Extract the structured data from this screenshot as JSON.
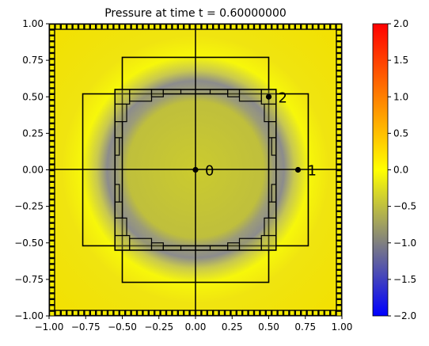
{
  "chart_data": {
    "type": "heatmap",
    "title": "Pressure at time t =     0.60000000",
    "xlabel": "",
    "ylabel": "",
    "xlim": [
      -1,
      1
    ],
    "ylim": [
      -1,
      1
    ],
    "xticks": [
      "−1.00",
      "−0.75",
      "−0.50",
      "−0.25",
      "0.00",
      "0.25",
      "0.50",
      "0.75",
      "1.00"
    ],
    "yticks": [
      "1.00",
      "0.75",
      "0.50",
      "0.25",
      "0.00",
      "−0.25",
      "−0.50",
      "−0.75",
      "−1.00"
    ],
    "xtick_values": [
      -1,
      -0.75,
      -0.5,
      -0.25,
      0,
      0.25,
      0.5,
      0.75,
      1
    ],
    "ytick_values": [
      1,
      0.75,
      0.5,
      0.25,
      0,
      -0.25,
      -0.5,
      -0.75,
      -1
    ],
    "colorbar": {
      "range": [
        -2,
        2
      ],
      "ticks": [
        "2.0",
        "1.5",
        "1.0",
        "0.5",
        "0.0",
        "−0.5",
        "−1.0",
        "−1.5",
        "−2.0"
      ],
      "tick_values": [
        2,
        1.5,
        1,
        0.5,
        0,
        -0.5,
        -1,
        -1.5,
        -2
      ],
      "colors": [
        "#0000ff",
        "#808080",
        "#ffff00",
        "#ff0000"
      ]
    },
    "field": {
      "inner_circle_radius": 0.52,
      "inner_value": -0.35,
      "ring_min_radius": 0.62,
      "ring_min_value": -1.0,
      "outer_value": -0.2
    },
    "grid_boxes": [
      {
        "x": [
          -0.5,
          0.5
        ],
        "y": [
          -0.77,
          0.77
        ]
      },
      {
        "x": [
          -0.77,
          0.77
        ],
        "y": [
          -0.52,
          0.52
        ]
      },
      {
        "x": [
          -0.55,
          0.55
        ],
        "y": [
          -0.55,
          0.55
        ]
      }
    ],
    "points": [
      {
        "label": "0",
        "x": 0.0,
        "y": 0.0
      },
      {
        "label": "1",
        "x": 0.7,
        "y": 0.0
      },
      {
        "label": "2",
        "x": 0.5,
        "y": 0.5
      }
    ]
  }
}
